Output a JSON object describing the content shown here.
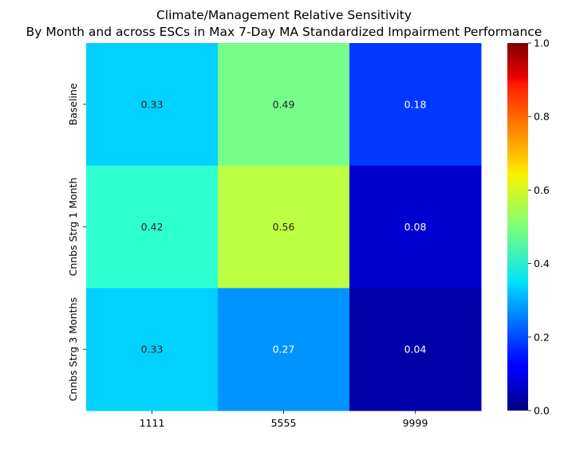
{
  "chart_data": {
    "type": "heatmap",
    "title": "Climate/Management Relative Sensitivity",
    "subtitle": "By Month and across ESCs in Max 7-Day MA Standardized Impairment Performance",
    "columns": [
      "1111",
      "5555",
      "9999"
    ],
    "rows": [
      "Baseline",
      "Cnnbs Strg 1 Month",
      "Cnnbs Strg 3 Months"
    ],
    "values": [
      [
        0.33,
        0.49,
        0.18
      ],
      [
        0.42,
        0.56,
        0.08
      ],
      [
        0.33,
        0.27,
        0.04
      ]
    ],
    "value_labels": [
      [
        "0.33",
        "0.49",
        "0.18"
      ],
      [
        "0.42",
        "0.56",
        "0.08"
      ],
      [
        "0.33",
        "0.27",
        "0.04"
      ]
    ],
    "colormap": "jet",
    "vmin": 0.0,
    "vmax": 1.0,
    "colorbar_ticks": [
      "0.0",
      "0.2",
      "0.4",
      "0.6",
      "0.8",
      "1.0"
    ],
    "colorbar_tick_values": [
      0.0,
      0.2,
      0.4,
      0.6,
      0.8,
      1.0
    ],
    "colorbar_position": "right",
    "grid": false
  }
}
